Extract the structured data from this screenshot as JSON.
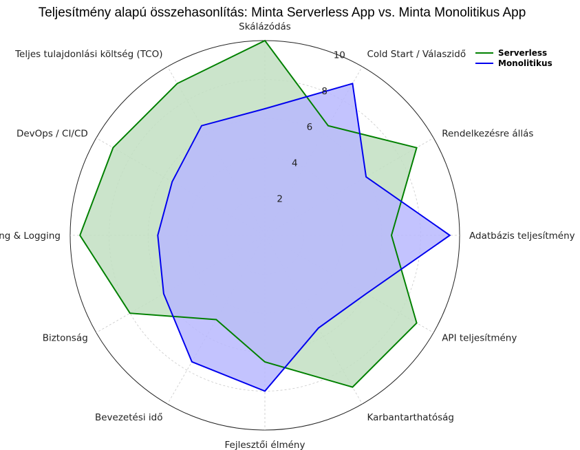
{
  "chart_data": {
    "type": "radar",
    "title": "Teljesítmény alapú összehasonlítás: Minta Serverless App vs. Minta Monolitikus App",
    "categories": [
      "Skálázódás",
      "Cold Start / Válaszidő",
      "Rendelkezésre állás",
      "Adatbázis teljesítmény",
      "API teljesítmény",
      "Karbantarthatóság",
      "Fejlesztői élmény",
      "Bevezetési idő",
      "Biztonság",
      "Monitoring & Logging",
      "DevOps / CI/CD",
      "Teljes tulajdonlási költség (TCO)"
    ],
    "rlim": [
      0,
      10
    ],
    "rticks": [
      2,
      4,
      6,
      8,
      10
    ],
    "grid": true,
    "legend_position": "top-right",
    "series": [
      {
        "name": "Serverless",
        "color": "#008000",
        "fill": "#c2dfc2",
        "values": [
          10,
          6.5,
          9,
          6.5,
          9,
          9,
          6.5,
          5,
          8,
          9.5,
          9,
          9
        ]
      },
      {
        "name": "Monolitikus",
        "color": "#0000ee",
        "fill": "#b8b8fe",
        "values": [
          6.5,
          9,
          6,
          9.5,
          6,
          5.5,
          8,
          7.5,
          6,
          5.5,
          5.5,
          6.5
        ]
      }
    ]
  }
}
